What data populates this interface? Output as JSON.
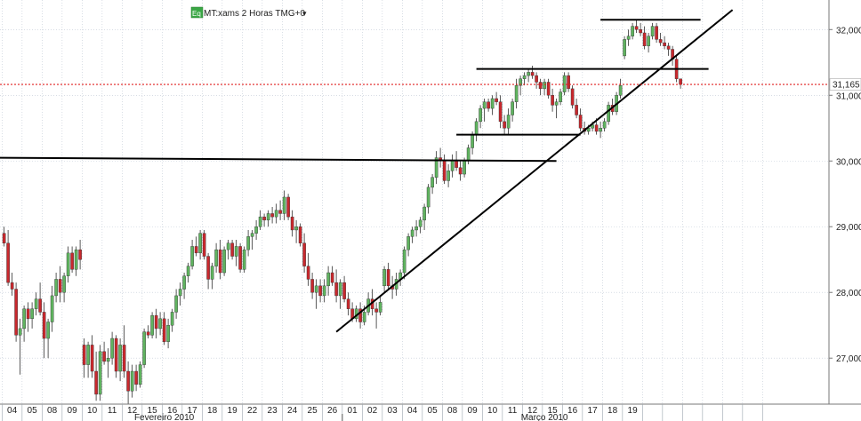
{
  "header": {
    "symbol_badge": "Eq",
    "title": "MT:xams 2 Horas TMG+0",
    "dropdown_glyph": "▾"
  },
  "colors": {
    "up": "#5fb35f",
    "down": "#c8282d",
    "grid": "#bfc8d4",
    "current_price_line": "#e02020",
    "trendline": "#000000"
  },
  "current_price_label": "31,165",
  "chart_data": {
    "type": "candlestick",
    "title": "MT:xams 2 Horas TMG+0",
    "ylim": [
      26300,
      32450
    ],
    "yticks": [
      {
        "value": 27000,
        "label": "27,000"
      },
      {
        "value": 28000,
        "label": "28,000"
      },
      {
        "value": 29000,
        "label": "29,000"
      },
      {
        "value": 30000,
        "label": "30,000"
      },
      {
        "value": 31000,
        "label": "31,000"
      },
      {
        "value": 32000,
        "label": "32,000"
      }
    ],
    "current_price": 31165,
    "x_labels": [
      "04",
      "05",
      "08",
      "09",
      "10",
      "11",
      "12",
      "15",
      "16",
      "17",
      "18",
      "19",
      "22",
      "23",
      "24",
      "25",
      "26",
      "01",
      "02",
      "03",
      "04",
      "05",
      "08",
      "09",
      "10",
      "11",
      "12",
      "15",
      "16",
      "17",
      "18",
      "19"
    ],
    "months": [
      {
        "label": "Fevereiro 2010",
        "day_index": 8
      },
      {
        "label": "Março 2010",
        "day_index": 27
      }
    ],
    "bars_per_day": 5,
    "candles": [
      [
        28900,
        29000,
        28700,
        28750
      ],
      [
        28750,
        28950,
        28100,
        28150
      ],
      [
        28150,
        28300,
        27950,
        28050
      ],
      [
        28050,
        28150,
        27250,
        27350
      ],
      [
        27350,
        27600,
        26750,
        27450
      ],
      [
        27450,
        27800,
        27250,
        27750
      ],
      [
        27750,
        27850,
        27400,
        27600
      ],
      [
        27600,
        27850,
        27450,
        27750
      ],
      [
        27750,
        28000,
        27650,
        27900
      ],
      [
        27900,
        28150,
        27650,
        27700
      ],
      [
        27700,
        27850,
        27000,
        27300
      ],
      [
        27300,
        27600,
        27000,
        27550
      ],
      [
        27550,
        28100,
        27400,
        27950
      ],
      [
        27950,
        28300,
        27850,
        28200
      ],
      [
        28200,
        28400,
        27850,
        28000
      ],
      [
        28000,
        28300,
        27850,
        28250
      ],
      [
        28250,
        28700,
        28150,
        28600
      ],
      [
        28600,
        28700,
        28300,
        28350
      ],
      [
        28350,
        28700,
        28250,
        28650
      ],
      [
        28650,
        28800,
        28350,
        28500
      ],
      [
        27200,
        27300,
        26700,
        26900
      ],
      [
        26900,
        27250,
        26700,
        27200
      ],
      [
        27200,
        27350,
        26700,
        26800
      ],
      [
        26800,
        27100,
        26350,
        26450
      ],
      [
        26450,
        27200,
        26350,
        27100
      ],
      [
        27100,
        27250,
        26900,
        26950
      ],
      [
        26950,
        27150,
        26700,
        27000
      ],
      [
        27000,
        27400,
        26900,
        27300
      ],
      [
        27300,
        27350,
        26700,
        26800
      ],
      [
        26800,
        27300,
        26650,
        27200
      ],
      [
        27200,
        27500,
        26700,
        26800
      ],
      [
        26800,
        26950,
        26250,
        26500
      ],
      [
        26500,
        26900,
        26400,
        26800
      ],
      [
        26800,
        26900,
        26500,
        26600
      ],
      [
        26600,
        26950,
        26550,
        26900
      ],
      [
        26900,
        27450,
        26850,
        27400
      ],
      [
        27400,
        27500,
        27300,
        27350
      ],
      [
        27350,
        27700,
        27300,
        27650
      ],
      [
        27650,
        27750,
        27300,
        27450
      ],
      [
        27450,
        27700,
        27350,
        27600
      ],
      [
        27600,
        27700,
        27200,
        27250
      ],
      [
        27250,
        27600,
        27150,
        27500
      ],
      [
        27500,
        27750,
        27400,
        27700
      ],
      [
        27700,
        28050,
        27600,
        27950
      ],
      [
        27950,
        28150,
        27800,
        28050
      ],
      [
        28050,
        28300,
        27900,
        28250
      ],
      [
        28250,
        28450,
        28150,
        28400
      ],
      [
        28400,
        28800,
        28350,
        28700
      ],
      [
        28700,
        28850,
        28550,
        28600
      ],
      [
        28600,
        28950,
        28500,
        28900
      ],
      [
        28900,
        28950,
        28500,
        28550
      ],
      [
        28550,
        28600,
        28050,
        28200
      ],
      [
        28200,
        28450,
        28050,
        28400
      ],
      [
        28400,
        28750,
        28300,
        28650
      ],
      [
        28650,
        28800,
        28200,
        28300
      ],
      [
        28300,
        28700,
        28250,
        28650
      ],
      [
        28650,
        28800,
        28500,
        28750
      ],
      [
        28750,
        28800,
        28500,
        28550
      ],
      [
        28550,
        28800,
        28400,
        28700
      ],
      [
        28700,
        28750,
        28300,
        28350
      ],
      [
        28350,
        28700,
        28300,
        28650
      ],
      [
        28650,
        28950,
        28550,
        28850
      ],
      [
        28850,
        28950,
        28650,
        28900
      ],
      [
        28900,
        29100,
        28800,
        29000
      ],
      [
        29000,
        29250,
        28950,
        29150
      ],
      [
        29150,
        29200,
        29000,
        29100
      ],
      [
        29100,
        29250,
        29000,
        29200
      ],
      [
        29200,
        29300,
        29050,
        29150
      ],
      [
        29150,
        29350,
        29050,
        29250
      ],
      [
        29250,
        29400,
        29100,
        29200
      ],
      [
        29200,
        29550,
        29100,
        29450
      ],
      [
        29450,
        29500,
        29100,
        29150
      ],
      [
        29150,
        29250,
        28850,
        28950
      ],
      [
        28950,
        29100,
        28750,
        29000
      ],
      [
        29000,
        29050,
        28700,
        28750
      ],
      [
        28750,
        28900,
        28300,
        28400
      ],
      [
        28400,
        28600,
        28100,
        28200
      ],
      [
        28200,
        28300,
        27900,
        28000
      ],
      [
        28000,
        28200,
        27750,
        28100
      ],
      [
        28100,
        28200,
        27850,
        27950
      ],
      [
        27950,
        28200,
        27850,
        28100
      ],
      [
        28100,
        28400,
        27950,
        28300
      ],
      [
        28300,
        28400,
        28100,
        28150
      ],
      [
        28150,
        28350,
        27850,
        27950
      ],
      [
        27950,
        28200,
        27750,
        28150
      ],
      [
        28150,
        28250,
        27850,
        27900
      ],
      [
        27900,
        28000,
        27650,
        27750
      ],
      [
        27750,
        27850,
        27550,
        27600
      ],
      [
        27600,
        27800,
        27550,
        27750
      ],
      [
        27750,
        27850,
        27450,
        27550
      ],
      [
        27550,
        27800,
        27500,
        27700
      ],
      [
        27700,
        28000,
        27650,
        27900
      ],
      [
        27900,
        28050,
        27650,
        27750
      ],
      [
        27750,
        27850,
        27450,
        27700
      ],
      [
        27700,
        27950,
        27650,
        27850
      ],
      [
        28100,
        28400,
        28000,
        28350
      ],
      [
        28350,
        28450,
        28050,
        28100
      ],
      [
        28100,
        28250,
        27900,
        28050
      ],
      [
        28050,
        28300,
        27950,
        28200
      ],
      [
        28200,
        28350,
        28100,
        28300
      ],
      [
        28300,
        28700,
        28200,
        28650
      ],
      [
        28650,
        28900,
        28550,
        28850
      ],
      [
        28850,
        29000,
        28750,
        28950
      ],
      [
        28950,
        29100,
        28850,
        29000
      ],
      [
        29000,
        29150,
        28900,
        29100
      ],
      [
        29100,
        29350,
        28950,
        29300
      ],
      [
        29300,
        29650,
        29200,
        29600
      ],
      [
        29600,
        29800,
        29500,
        29750
      ],
      [
        29750,
        30150,
        29650,
        30050
      ],
      [
        30050,
        30200,
        29900,
        30000
      ],
      [
        30000,
        30100,
        29650,
        29700
      ],
      [
        29700,
        29950,
        29600,
        29850
      ],
      [
        29850,
        30100,
        29750,
        30000
      ],
      [
        30000,
        30150,
        29850,
        29900
      ],
      [
        29900,
        30000,
        29700,
        29800
      ],
      [
        29800,
        30050,
        29750,
        30000
      ],
      [
        30000,
        30250,
        29950,
        30200
      ],
      [
        30200,
        30450,
        30100,
        30400
      ],
      [
        30400,
        30650,
        30300,
        30600
      ],
      [
        30600,
        30850,
        30500,
        30800
      ],
      [
        30800,
        30950,
        30600,
        30900
      ],
      [
        30900,
        30950,
        30750,
        30800
      ],
      [
        30800,
        31000,
        30700,
        30950
      ],
      [
        30950,
        31050,
        30850,
        30900
      ],
      [
        30900,
        31000,
        30500,
        30600
      ],
      [
        30600,
        30700,
        30400,
        30500
      ],
      [
        30500,
        30800,
        30400,
        30700
      ],
      [
        30700,
        30950,
        30600,
        30900
      ],
      [
        30900,
        31250,
        30800,
        31150
      ],
      [
        31150,
        31300,
        31000,
        31250
      ],
      [
        31250,
        31350,
        31150,
        31300
      ],
      [
        31300,
        31400,
        31200,
        31350
      ],
      [
        31350,
        31450,
        31250,
        31300
      ],
      [
        31300,
        31350,
        31100,
        31200
      ],
      [
        31200,
        31250,
        31000,
        31100
      ],
      [
        31100,
        31250,
        31000,
        31200
      ],
      [
        31200,
        31250,
        30950,
        31000
      ],
      [
        31000,
        31100,
        30750,
        30850
      ],
      [
        30850,
        30950,
        30650,
        30900
      ],
      [
        30900,
        31100,
        30850,
        31050
      ],
      [
        31050,
        31350,
        31000,
        31300
      ],
      [
        31300,
        31350,
        31050,
        31100
      ],
      [
        31100,
        31150,
        30800,
        30850
      ],
      [
        30850,
        30950,
        30650,
        30700
      ],
      [
        30700,
        30800,
        30450,
        30500
      ],
      [
        30500,
        30600,
        30400,
        30450
      ],
      [
        30450,
        30550,
        30400,
        30500
      ],
      [
        30500,
        30600,
        30450,
        30550
      ],
      [
        30550,
        30650,
        30400,
        30450
      ],
      [
        30450,
        30600,
        30350,
        30500
      ],
      [
        30500,
        30650,
        30450,
        30600
      ],
      [
        30600,
        30900,
        30550,
        30850
      ],
      [
        30850,
        30950,
        30700,
        30750
      ],
      [
        30750,
        31050,
        30700,
        31000
      ],
      [
        31000,
        31250,
        30950,
        31150
      ],
      [
        31600,
        31900,
        31550,
        31850
      ],
      [
        31850,
        32000,
        31750,
        31900
      ],
      [
        31900,
        32100,
        31850,
        32050
      ],
      [
        32050,
        32150,
        31950,
        32000
      ],
      [
        32000,
        32100,
        31900,
        31950
      ],
      [
        31950,
        32050,
        31700,
        31750
      ],
      [
        31750,
        31950,
        31650,
        31900
      ],
      [
        31900,
        32100,
        31850,
        32050
      ],
      [
        32050,
        32100,
        31800,
        31850
      ],
      [
        31850,
        31950,
        31750,
        31800
      ],
      [
        31800,
        31900,
        31700,
        31750
      ],
      [
        31750,
        31800,
        31600,
        31700
      ],
      [
        31700,
        31750,
        31450,
        31550
      ],
      [
        31550,
        31600,
        31200,
        31250
      ],
      [
        31250,
        31250,
        31100,
        31165
      ]
    ],
    "trendlines": [
      {
        "x1": 83,
        "y1": 27400,
        "x2": 182,
        "y2": 32300
      },
      {
        "x1": -2,
        "y1": 30050,
        "x2": 138,
        "y2": 30000
      },
      {
        "x1": 113,
        "y1": 30400,
        "x2": 144,
        "y2": 30400
      },
      {
        "x1": 118,
        "y1": 31400,
        "x2": 176,
        "y2": 31400
      },
      {
        "x1": 149,
        "y1": 32150,
        "x2": 174,
        "y2": 32150
      }
    ]
  }
}
